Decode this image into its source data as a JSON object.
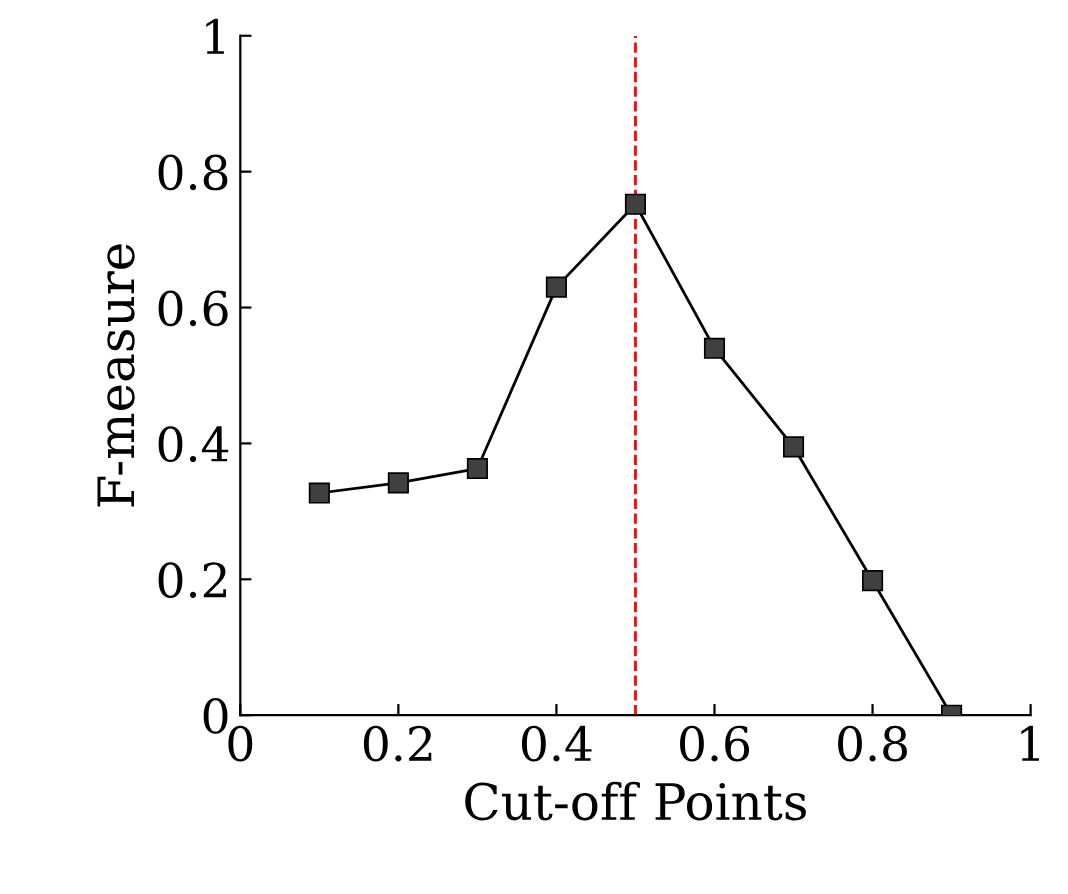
{
  "chart_data": {
    "type": "line",
    "xlabel": "Cut-off Points",
    "ylabel": "F-measure",
    "x": [
      0.1,
      0.2,
      0.3,
      0.4,
      0.5,
      0.6,
      0.7,
      0.8,
      0.9
    ],
    "series": [
      {
        "color": "#000000",
        "values": [
          0.327,
          0.342,
          0.363,
          0.63,
          0.752,
          0.54,
          0.395,
          0.198,
          0.0
        ]
      }
    ],
    "xlim": [
      0,
      1
    ],
    "ylim": [
      0,
      1
    ],
    "xticks": [
      0,
      0.2,
      0.4,
      0.6,
      0.8,
      1
    ],
    "yticks": [
      0,
      0.2,
      0.4,
      0.6,
      0.8,
      1
    ],
    "ref_lines": [
      {
        "axis": "x",
        "value": 0.5,
        "label": null,
        "color": "#ff0000",
        "line_style": "dashed"
      }
    ],
    "marker": "square",
    "line_style": "solid",
    "grid": false,
    "legend": false
  }
}
